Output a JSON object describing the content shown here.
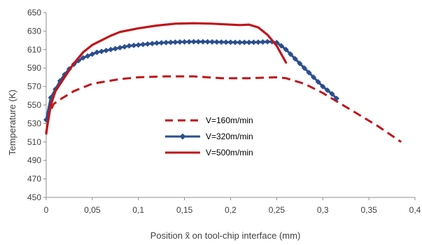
{
  "chart_data": {
    "type": "line",
    "title": "",
    "xlabel": "Position x̃ on tool-chip interface (mm)",
    "ylabel": "Temperature (K)",
    "xlim": [
      0,
      0.4
    ],
    "ylim": [
      450,
      650
    ],
    "x_ticks": [
      0,
      0.05,
      0.1,
      0.15,
      0.2,
      0.25,
      0.3,
      0.35,
      0.4
    ],
    "x_tick_labels": [
      "0",
      "0,05",
      "0,1",
      "0,15",
      "0,2",
      "0,25",
      "0,3",
      "0,35",
      "0,4"
    ],
    "y_ticks": [
      450,
      470,
      490,
      510,
      530,
      550,
      570,
      590,
      610,
      630,
      650
    ],
    "y_tick_labels": [
      "450",
      "470",
      "490",
      "510",
      "530",
      "550",
      "570",
      "590",
      "610",
      "630",
      "650"
    ],
    "grid": false,
    "legend_position": "center",
    "series": [
      {
        "name": "V=160m/min",
        "color": "#c0161b",
        "style": "dashed",
        "marker": "none",
        "points": [
          [
            0,
            518
          ],
          [
            0.003,
            540
          ],
          [
            0.008,
            551
          ],
          [
            0.015,
            556
          ],
          [
            0.03,
            565
          ],
          [
            0.05,
            573
          ],
          [
            0.08,
            578
          ],
          [
            0.1,
            580
          ],
          [
            0.13,
            581
          ],
          [
            0.16,
            581
          ],
          [
            0.19,
            579
          ],
          [
            0.22,
            579
          ],
          [
            0.25,
            580
          ],
          [
            0.26,
            579
          ],
          [
            0.28,
            573
          ],
          [
            0.3,
            563
          ],
          [
            0.32,
            551
          ],
          [
            0.34,
            539
          ],
          [
            0.36,
            527
          ],
          [
            0.385,
            510
          ]
        ]
      },
      {
        "name": "V=320m/min",
        "color": "#2a4f8f",
        "style": "solid",
        "marker": "diamond",
        "points": [
          [
            0,
            534
          ],
          [
            0.005,
            558
          ],
          [
            0.01,
            567
          ],
          [
            0.015,
            576
          ],
          [
            0.02,
            583
          ],
          [
            0.025,
            589
          ],
          [
            0.03,
            594
          ],
          [
            0.035,
            598
          ],
          [
            0.04,
            601
          ],
          [
            0.045,
            603
          ],
          [
            0.05,
            605
          ],
          [
            0.055,
            607
          ],
          [
            0.06,
            608
          ],
          [
            0.065,
            609
          ],
          [
            0.07,
            610
          ],
          [
            0.075,
            611
          ],
          [
            0.08,
            612
          ],
          [
            0.085,
            613
          ],
          [
            0.09,
            614
          ],
          [
            0.095,
            614.5
          ],
          [
            0.1,
            615
          ],
          [
            0.105,
            615.5
          ],
          [
            0.11,
            616
          ],
          [
            0.115,
            616.5
          ],
          [
            0.12,
            617
          ],
          [
            0.125,
            617.3
          ],
          [
            0.13,
            617.6
          ],
          [
            0.135,
            617.8
          ],
          [
            0.14,
            618
          ],
          [
            0.145,
            618.2
          ],
          [
            0.15,
            618.3
          ],
          [
            0.155,
            618.4
          ],
          [
            0.16,
            618.5
          ],
          [
            0.165,
            618.5
          ],
          [
            0.17,
            618.5
          ],
          [
            0.175,
            618.4
          ],
          [
            0.18,
            618.3
          ],
          [
            0.185,
            618.2
          ],
          [
            0.19,
            618.1
          ],
          [
            0.195,
            618
          ],
          [
            0.2,
            617.9
          ],
          [
            0.205,
            617.8
          ],
          [
            0.21,
            617.8
          ],
          [
            0.215,
            617.8
          ],
          [
            0.22,
            617.8
          ],
          [
            0.225,
            617.9
          ],
          [
            0.23,
            618
          ],
          [
            0.235,
            618.2
          ],
          [
            0.24,
            618.5
          ],
          [
            0.245,
            618.5
          ],
          [
            0.25,
            617.5
          ],
          [
            0.255,
            614
          ],
          [
            0.26,
            610
          ],
          [
            0.265,
            605
          ],
          [
            0.27,
            600
          ],
          [
            0.275,
            595
          ],
          [
            0.28,
            590
          ],
          [
            0.285,
            585
          ],
          [
            0.29,
            580
          ],
          [
            0.295,
            575
          ],
          [
            0.3,
            570
          ],
          [
            0.305,
            566
          ],
          [
            0.31,
            562
          ],
          [
            0.315,
            557
          ]
        ]
      },
      {
        "name": "V=500m/min",
        "color": "#c0161b",
        "style": "solid",
        "marker": "none",
        "points": [
          [
            0,
            520
          ],
          [
            0.005,
            550
          ],
          [
            0.01,
            565
          ],
          [
            0.02,
            580
          ],
          [
            0.03,
            595
          ],
          [
            0.04,
            607
          ],
          [
            0.05,
            615
          ],
          [
            0.06,
            620
          ],
          [
            0.07,
            625
          ],
          [
            0.08,
            629
          ],
          [
            0.1,
            633
          ],
          [
            0.12,
            636
          ],
          [
            0.14,
            638
          ],
          [
            0.16,
            638.5
          ],
          [
            0.18,
            638
          ],
          [
            0.2,
            637
          ],
          [
            0.21,
            636.5
          ],
          [
            0.22,
            637
          ],
          [
            0.23,
            634
          ],
          [
            0.24,
            626
          ],
          [
            0.25,
            614
          ],
          [
            0.255,
            605
          ],
          [
            0.26,
            596
          ]
        ]
      }
    ]
  }
}
